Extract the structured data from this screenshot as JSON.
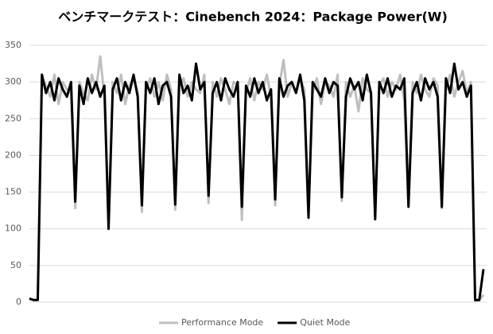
{
  "chart_data": {
    "type": "line",
    "title": "ベンチマークテスト：Cinebench 2024：Package Power(W)",
    "ylim": [
      0,
      350
    ],
    "yticks": [
      0,
      50,
      100,
      150,
      200,
      250,
      300,
      350
    ],
    "grid": true,
    "legend": "bottom",
    "series": [
      {
        "name": "Performance Mode",
        "color": "#bfbfbf",
        "values": [
          4,
          3,
          3,
          305,
          295,
          280,
          310,
          270,
          300,
          290,
          285,
          128,
          300,
          285,
          275,
          310,
          290,
          335,
          280,
          110,
          300,
          285,
          310,
          270,
          295,
          305,
          285,
          123,
          290,
          305,
          280,
          300,
          275,
          310,
          290,
          126,
          295,
          305,
          280,
          300,
          290,
          285,
          310,
          135,
          300,
          280,
          305,
          290,
          270,
          300,
          295,
          112,
          285,
          305,
          275,
          300,
          290,
          310,
          280,
          132,
          295,
          330,
          280,
          300,
          285,
          305,
          290,
          120,
          285,
          305,
          270,
          300,
          295,
          280,
          310,
          138,
          300,
          280,
          295,
          260,
          305,
          290,
          285,
          118,
          295,
          305,
          280,
          300,
          290,
          310,
          275,
          132,
          300,
          285,
          310,
          290,
          280,
          305,
          295,
          128,
          290,
          310,
          280,
          300,
          315,
          285,
          300,
          2,
          3,
          10
        ]
      },
      {
        "name": "Quiet Mode",
        "color": "#000000",
        "values": [
          5,
          3,
          3,
          310,
          285,
          300,
          275,
          305,
          290,
          280,
          300,
          137,
          295,
          270,
          305,
          285,
          300,
          280,
          295,
          100,
          290,
          305,
          275,
          300,
          285,
          310,
          280,
          132,
          300,
          285,
          305,
          270,
          295,
          300,
          280,
          133,
          310,
          285,
          295,
          275,
          325,
          290,
          300,
          145,
          285,
          300,
          275,
          305,
          290,
          280,
          300,
          130,
          295,
          280,
          305,
          285,
          300,
          275,
          290,
          140,
          305,
          280,
          295,
          300,
          285,
          310,
          275,
          115,
          300,
          290,
          280,
          305,
          285,
          300,
          295,
          143,
          280,
          305,
          290,
          300,
          275,
          310,
          285,
          113,
          300,
          285,
          305,
          280,
          295,
          290,
          305,
          130,
          285,
          300,
          275,
          305,
          290,
          300,
          280,
          130,
          305,
          285,
          325,
          290,
          300,
          280,
          295,
          3,
          3,
          45
        ]
      }
    ]
  }
}
